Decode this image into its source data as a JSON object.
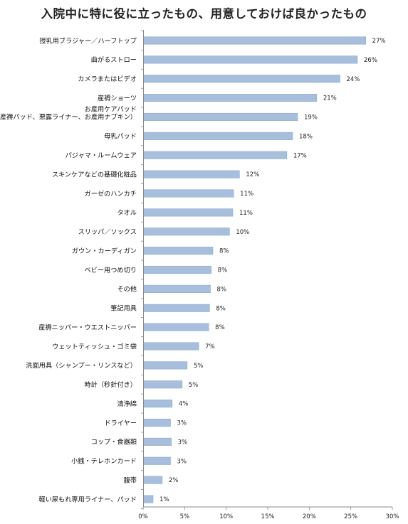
{
  "chart_data": {
    "type": "bar",
    "orientation": "horizontal",
    "title": "入院中に特に役に立ったもの、用意しておけば良かったもの",
    "categories": [
      "授乳用ブラジャー／ハーフトップ",
      "曲がるストロー",
      "カメラまたはビデオ",
      "産褥ショーツ",
      [
        "お産用ケアパッド",
        "（産褥パッド、悪露ライナー、お産用ナプキン）"
      ],
      "母乳パッド",
      "パジャマ・ルームウェア",
      "スキンケアなどの基礎化粧品",
      "ガーゼのハンカチ",
      "タオル",
      "スリッパ／ソックス",
      "ガウン・カーディガン",
      "ベビー用つめ切り",
      "その他",
      "筆記用具",
      "産褥ニッパー・ウエストニッパー",
      "ウェットティッシュ・ゴミ袋",
      "洗面用具（シャンプー・リンスなど）",
      "時計（秒針付き）",
      "清浄綿",
      "ドライヤー",
      "コップ・食器類",
      "小銭・テレホンカード",
      "腹帯",
      "軽い尿もれ専用ライナー、パッド"
    ],
    "values": [
      26.8,
      25.8,
      23.7,
      20.9,
      18.6,
      18.0,
      17.3,
      11.6,
      10.9,
      10.8,
      10.4,
      8.4,
      8.2,
      8.1,
      8.0,
      7.9,
      6.7,
      5.3,
      4.7,
      3.5,
      3.3,
      3.4,
      3.3,
      2.3,
      1.2
    ],
    "value_labels": [
      "27%",
      "26%",
      "24%",
      "21%",
      "19%",
      "18%",
      "17%",
      "12%",
      "11%",
      "11%",
      "10%",
      "8%",
      "8%",
      "8%",
      "8%",
      "8%",
      "7%",
      "5%",
      "5%",
      "4%",
      "3%",
      "3%",
      "3%",
      "2%",
      "1%"
    ],
    "xlim": [
      0,
      30
    ],
    "xticks": [
      0,
      5,
      10,
      15,
      20,
      25,
      30
    ],
    "xtick_labels": [
      "0%",
      "5%",
      "10%",
      "15%",
      "20%",
      "25%",
      "30%"
    ],
    "grid": false,
    "bar_color": "#a7bedc",
    "bar_edge_color": "#8faccf"
  }
}
